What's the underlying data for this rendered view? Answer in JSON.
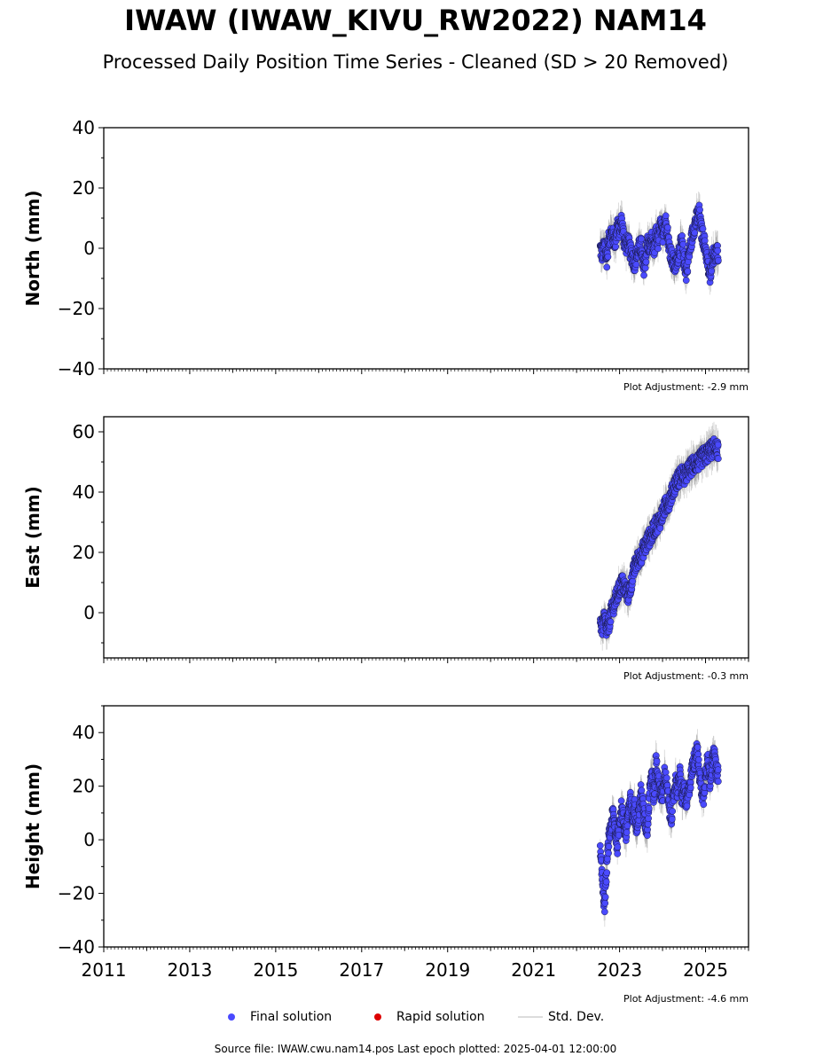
{
  "title": "IWAW (IWAW_KIVU_RW2022) NAM14",
  "subtitle": "Processed Daily Position Time Series - Cleaned (SD > 20 Removed)",
  "footer": "Source file: IWAW.cwu.nam14.pos  Last epoch plotted: 2025-04-01 12:00:00",
  "legend": {
    "final": "Final solution",
    "rapid": "Rapid solution",
    "std": "Std. Dev."
  },
  "colors": {
    "final": "#4a4aff",
    "rapid": "#dd0000",
    "std": "#c8c8c8",
    "marker_edge": "#1a1a4a"
  },
  "chart_data": [
    {
      "type": "scatter",
      "ylabel": "North (mm)",
      "xlim": [
        2011,
        2026
      ],
      "ylim": [
        -40,
        40
      ],
      "yticks": [
        -40,
        -20,
        0,
        20,
        40
      ],
      "adjustment": "Plot Adjustment: -2.9 mm",
      "series": [
        {
          "x": [
            2022.55,
            2022.6,
            2022.65,
            2022.7,
            2022.75,
            2022.8,
            2022.85,
            2022.9,
            2022.95,
            2023.0,
            2023.05,
            2023.1,
            2023.15,
            2023.2,
            2023.25,
            2023.3,
            2023.35,
            2023.4,
            2023.45,
            2023.5,
            2023.55,
            2023.6,
            2023.65,
            2023.7,
            2023.75,
            2023.8,
            2023.85,
            2023.9,
            2023.95,
            2024.0,
            2024.05,
            2024.1,
            2024.15,
            2024.2,
            2024.25,
            2024.3,
            2024.35,
            2024.4,
            2024.45,
            2024.5,
            2024.55,
            2024.6,
            2024.65,
            2024.7,
            2024.75,
            2024.8,
            2024.85,
            2024.9,
            2024.95,
            2025.0,
            2025.05,
            2025.1,
            2025.15,
            2025.2,
            2025.25
          ],
          "y": [
            0,
            -2,
            1,
            -4,
            3,
            5,
            4,
            2,
            8,
            6,
            9,
            3,
            1,
            2,
            -1,
            -3,
            -5,
            -2,
            0,
            1,
            -7,
            -4,
            2,
            0,
            3,
            -2,
            5,
            2,
            8,
            4,
            10,
            7,
            1,
            -2,
            -5,
            -6,
            -3,
            0,
            2,
            -4,
            -8,
            -3,
            1,
            5,
            8,
            10,
            12,
            6,
            3,
            0,
            -5,
            -10,
            -3,
            -2,
            -2
          ]
        }
      ]
    },
    {
      "type": "scatter",
      "ylabel": "East (mm)",
      "xlim": [
        2011,
        2026
      ],
      "ylim": [
        -15,
        65
      ],
      "yticks": [
        0,
        20,
        40,
        60
      ],
      "adjustment": "Plot Adjustment: -0.3 mm",
      "series": [
        {
          "x": [
            2022.55,
            2022.6,
            2022.65,
            2022.7,
            2022.75,
            2022.8,
            2022.85,
            2022.9,
            2022.95,
            2023.0,
            2023.05,
            2023.1,
            2023.15,
            2023.2,
            2023.25,
            2023.3,
            2023.35,
            2023.4,
            2023.45,
            2023.5,
            2023.55,
            2023.6,
            2023.65,
            2023.7,
            2023.75,
            2023.8,
            2023.85,
            2023.9,
            2023.95,
            2024.0,
            2024.05,
            2024.1,
            2024.15,
            2024.2,
            2024.25,
            2024.3,
            2024.35,
            2024.4,
            2024.45,
            2024.5,
            2024.55,
            2024.6,
            2024.65,
            2024.7,
            2024.75,
            2024.8,
            2024.85,
            2024.9,
            2024.95,
            2025.0,
            2025.05,
            2025.1,
            2025.15,
            2025.2,
            2025.25
          ],
          "y": [
            -3,
            -5,
            -2,
            -6,
            -4,
            0,
            2,
            4,
            6,
            8,
            10,
            9,
            7,
            6,
            8,
            12,
            15,
            17,
            18,
            19,
            21,
            22,
            24,
            25,
            26,
            28,
            29,
            30,
            31,
            33,
            35,
            36,
            37,
            39,
            41,
            43,
            44,
            45,
            46,
            45,
            46,
            47,
            48,
            49,
            49,
            50,
            50,
            51,
            52,
            52,
            53,
            54,
            54,
            55,
            54
          ]
        }
      ]
    },
    {
      "type": "scatter",
      "ylabel": "Height (mm)",
      "xlim": [
        2011,
        2026
      ],
      "ylim": [
        -40,
        50
      ],
      "yticks": [
        -40,
        -20,
        0,
        20,
        40
      ],
      "xticks": [
        2011,
        2013,
        2015,
        2017,
        2019,
        2021,
        2023,
        2025
      ],
      "xticklabels": [
        "2011",
        "2013",
        "2015",
        "2017",
        "2019",
        "2021",
        "2023",
        "2025"
      ],
      "adjustment": "Plot Adjustment: -4.6 mm",
      "series": [
        {
          "x": [
            2022.55,
            2022.6,
            2022.65,
            2022.7,
            2022.75,
            2022.8,
            2022.85,
            2022.9,
            2022.95,
            2023.0,
            2023.05,
            2023.1,
            2023.15,
            2023.2,
            2023.25,
            2023.3,
            2023.35,
            2023.4,
            2023.45,
            2023.5,
            2023.55,
            2023.6,
            2023.65,
            2023.7,
            2023.75,
            2023.8,
            2023.85,
            2023.9,
            2023.95,
            2024.0,
            2024.05,
            2024.1,
            2024.15,
            2024.2,
            2024.25,
            2024.3,
            2024.35,
            2024.4,
            2024.45,
            2024.5,
            2024.55,
            2024.6,
            2024.65,
            2024.7,
            2024.75,
            2024.8,
            2024.85,
            2024.9,
            2024.95,
            2025.0,
            2025.05,
            2025.1,
            2025.15,
            2025.2,
            2025.25
          ],
          "y": [
            -5,
            -15,
            -25,
            -10,
            0,
            5,
            10,
            3,
            -2,
            8,
            12,
            6,
            2,
            10,
            15,
            8,
            12,
            5,
            10,
            18,
            12,
            6,
            4,
            20,
            25,
            15,
            30,
            22,
            18,
            16,
            25,
            20,
            12,
            8,
            15,
            22,
            18,
            25,
            15,
            20,
            12,
            18,
            22,
            28,
            30,
            35,
            25,
            20,
            15,
            25,
            30,
            22,
            28,
            32,
            25
          ]
        }
      ]
    }
  ]
}
